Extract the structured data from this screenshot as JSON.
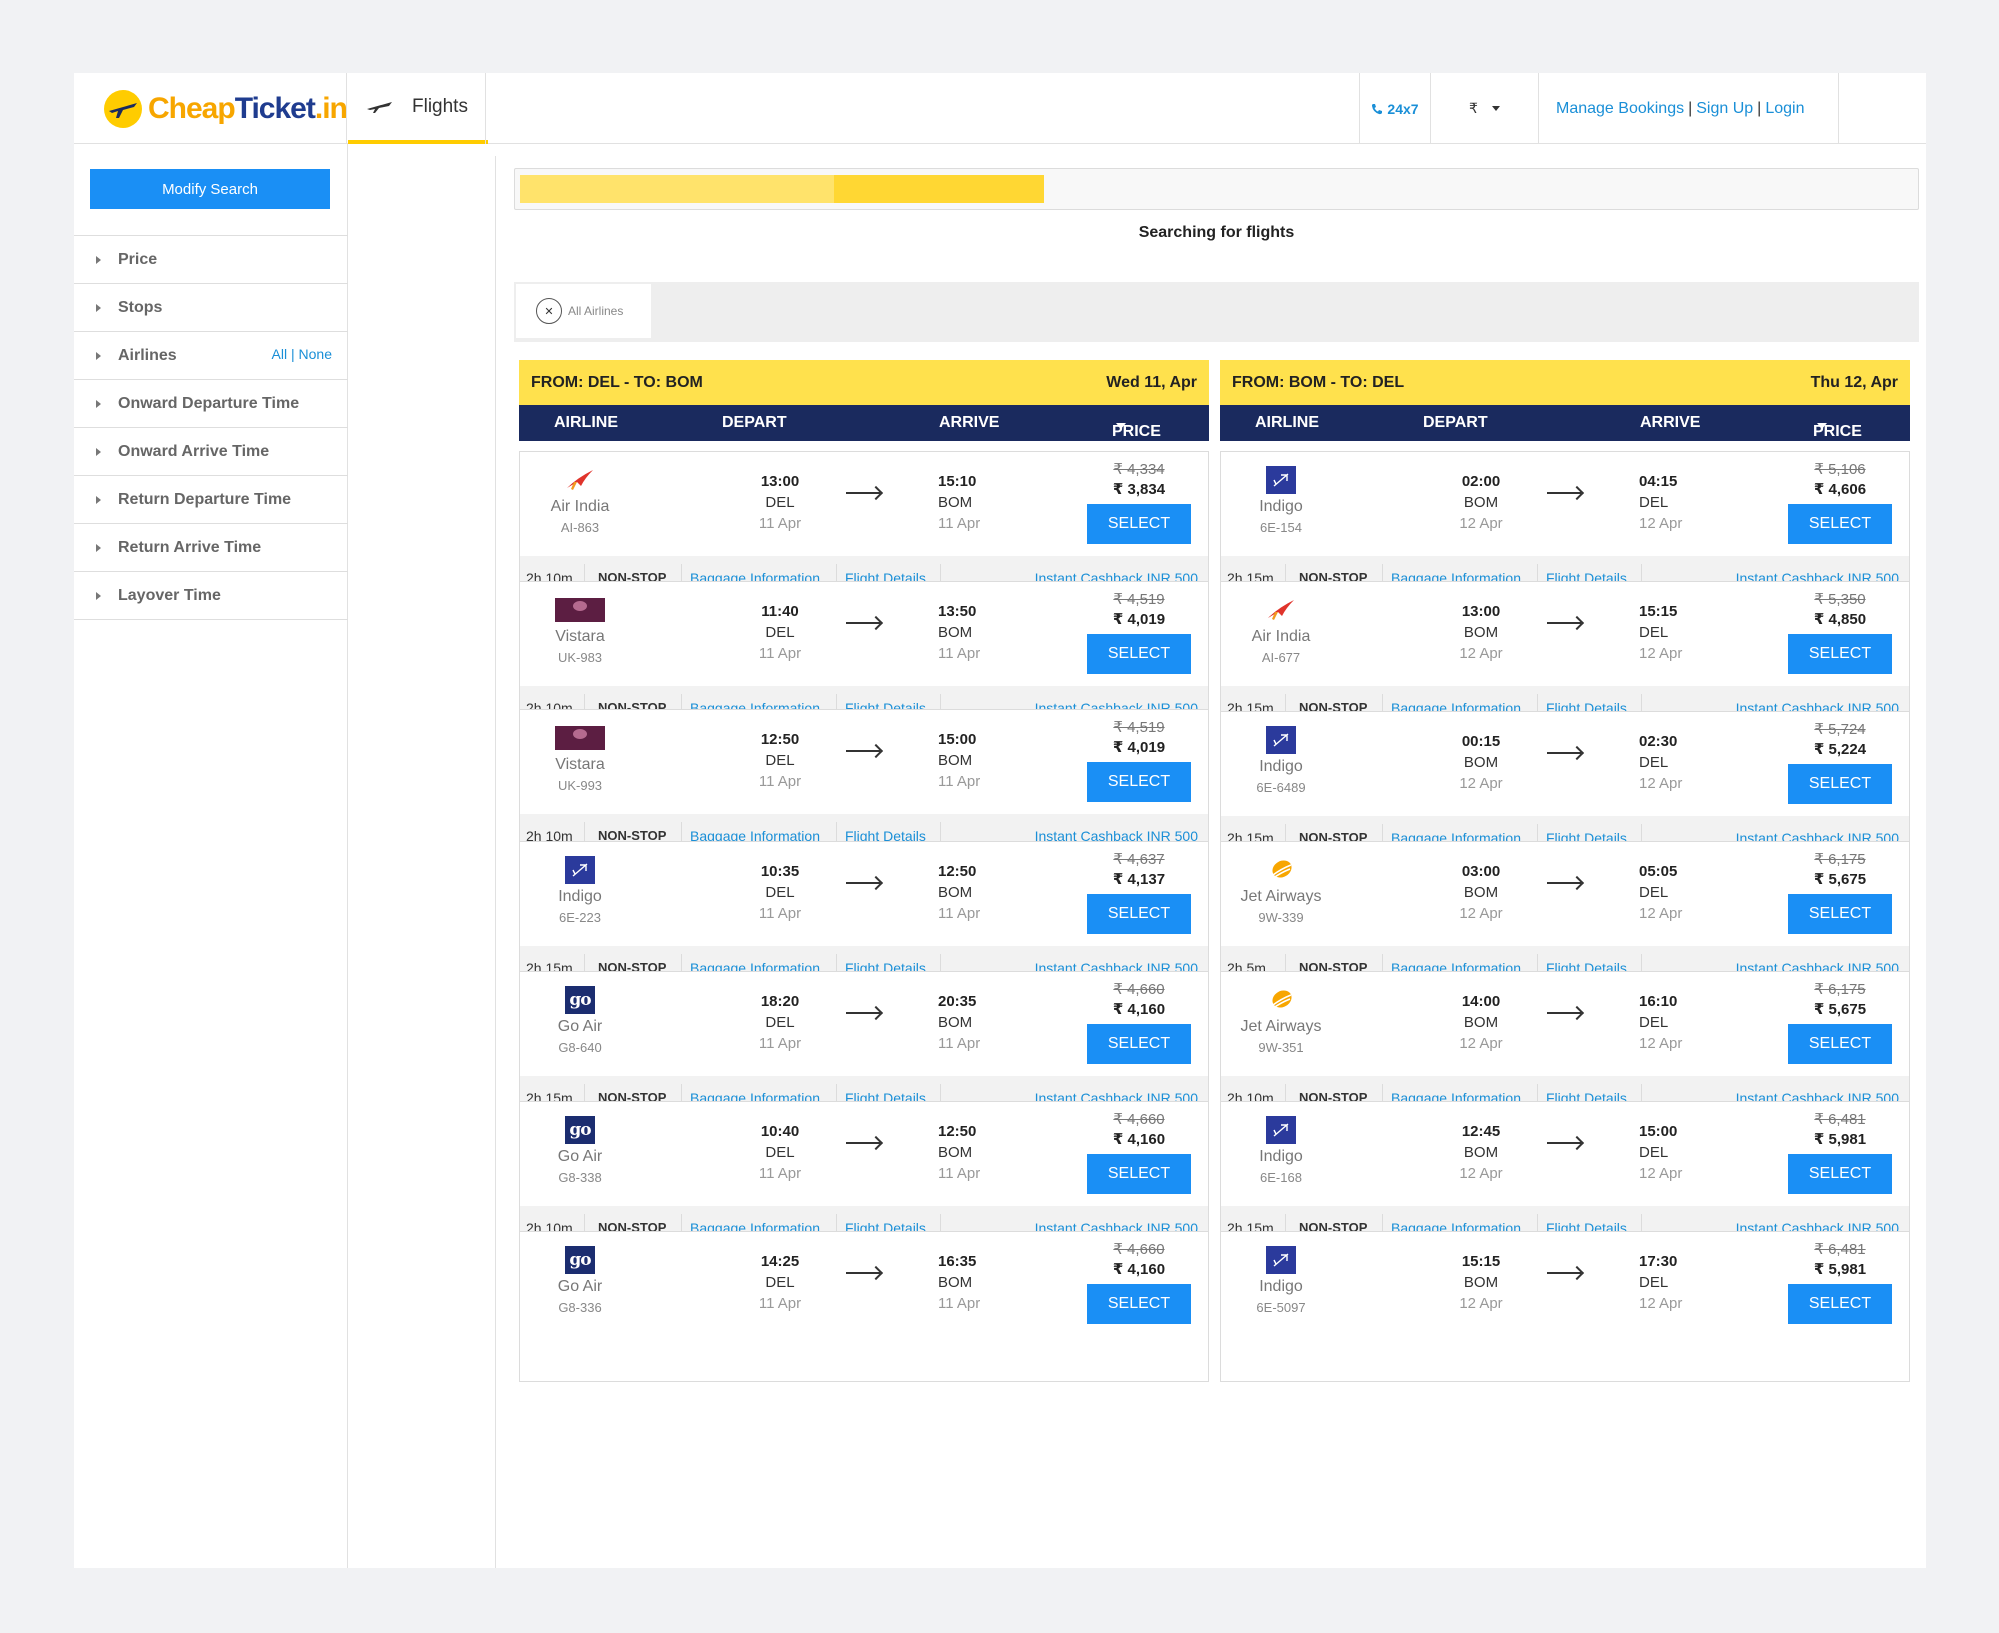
{
  "brand": {
    "logo_part1": "Cheap",
    "logo_part2": "Ticket",
    "logo_part3": ".in"
  },
  "nav": {
    "flights_tab": "Flights"
  },
  "header": {
    "support": "24x7",
    "currency": "₹",
    "manage_bookings": "Manage Bookings",
    "signup": "Sign Up",
    "login": "Login",
    "sep": "|"
  },
  "sidebar": {
    "modify_search": "Modify Search",
    "filters": [
      {
        "label": "Price"
      },
      {
        "label": "Stops"
      },
      {
        "label": "Airlines",
        "all": "All",
        "none": "None"
      },
      {
        "label": "Onward Departure Time"
      },
      {
        "label": "Onward Arrive Time"
      },
      {
        "label": "Return Departure Time"
      },
      {
        "label": "Return Arrive Time"
      },
      {
        "label": "Layover Time"
      }
    ]
  },
  "search": {
    "status": "Searching for flights",
    "progress": 0.46,
    "all_airlines": "All Airlines"
  },
  "columns": {
    "airline": "AIRLINE",
    "depart": "DEPART",
    "arrive": "ARRIVE",
    "price": "PRICE"
  },
  "onward": {
    "route": "FROM: DEL - TO: BOM",
    "date": "Wed 11, Apr",
    "flights": [
      {
        "logo": "airindia-icon",
        "airline": "Air India",
        "code": "AI-863",
        "dep_time": "13:00",
        "dep_city": "DEL",
        "dep_date": "11 Apr",
        "arr_time": "15:10",
        "arr_city": "BOM",
        "arr_date": "11 Apr",
        "old_price": "₹ 4,334",
        "price": "₹ 3,834",
        "duration": "2h 10m",
        "stops": "NON-STOP"
      },
      {
        "logo": "vistara-icon",
        "airline": "Vistara",
        "code": "UK-983",
        "dep_time": "11:40",
        "dep_city": "DEL",
        "dep_date": "11 Apr",
        "arr_time": "13:50",
        "arr_city": "BOM",
        "arr_date": "11 Apr",
        "old_price": "₹ 4,519",
        "price": "₹ 4,019",
        "duration": "2h 10m",
        "stops": "NON-STOP"
      },
      {
        "logo": "vistara-icon",
        "airline": "Vistara",
        "code": "UK-993",
        "dep_time": "12:50",
        "dep_city": "DEL",
        "dep_date": "11 Apr",
        "arr_time": "15:00",
        "arr_city": "BOM",
        "arr_date": "11 Apr",
        "old_price": "₹ 4,519",
        "price": "₹ 4,019",
        "duration": "2h 10m",
        "stops": "NON-STOP"
      },
      {
        "logo": "indigo-icon",
        "airline": "Indigo",
        "code": "6E-223",
        "dep_time": "10:35",
        "dep_city": "DEL",
        "dep_date": "11 Apr",
        "arr_time": "12:50",
        "arr_city": "BOM",
        "arr_date": "11 Apr",
        "old_price": "₹ 4,637",
        "price": "₹ 4,137",
        "duration": "2h 15m",
        "stops": "NON-STOP"
      },
      {
        "logo": "goair-icon",
        "airline": "Go Air",
        "code": "G8-640",
        "dep_time": "18:20",
        "dep_city": "DEL",
        "dep_date": "11 Apr",
        "arr_time": "20:35",
        "arr_city": "BOM",
        "arr_date": "11 Apr",
        "old_price": "₹ 4,660",
        "price": "₹ 4,160",
        "duration": "2h 15m",
        "stops": "NON-STOP"
      },
      {
        "logo": "goair-icon",
        "airline": "Go Air",
        "code": "G8-338",
        "dep_time": "10:40",
        "dep_city": "DEL",
        "dep_date": "11 Apr",
        "arr_time": "12:50",
        "arr_city": "BOM",
        "arr_date": "11 Apr",
        "old_price": "₹ 4,660",
        "price": "₹ 4,160",
        "duration": "2h 10m",
        "stops": "NON-STOP"
      },
      {
        "logo": "goair-icon",
        "airline": "Go Air",
        "code": "G8-336",
        "dep_time": "14:25",
        "dep_city": "DEL",
        "dep_date": "11 Apr",
        "arr_time": "16:35",
        "arr_city": "BOM",
        "arr_date": "11 Apr",
        "old_price": "₹ 4,660",
        "price": "₹ 4,160",
        "duration": "",
        "stops": ""
      }
    ]
  },
  "return": {
    "route": "FROM: BOM - TO: DEL",
    "date": "Thu 12, Apr",
    "flights": [
      {
        "logo": "indigo-icon",
        "airline": "Indigo",
        "code": "6E-154",
        "dep_time": "02:00",
        "dep_city": "BOM",
        "dep_date": "12 Apr",
        "arr_time": "04:15",
        "arr_city": "DEL",
        "arr_date": "12 Apr",
        "old_price": "₹ 5,106",
        "price": "₹ 4,606",
        "duration": "2h 15m",
        "stops": "NON-STOP"
      },
      {
        "logo": "airindia-icon",
        "airline": "Air India",
        "code": "AI-677",
        "dep_time": "13:00",
        "dep_city": "BOM",
        "dep_date": "12 Apr",
        "arr_time": "15:15",
        "arr_city": "DEL",
        "arr_date": "12 Apr",
        "old_price": "₹ 5,350",
        "price": "₹ 4,850",
        "duration": "2h 15m",
        "stops": "NON-STOP"
      },
      {
        "logo": "indigo-icon",
        "airline": "Indigo",
        "code": "6E-6489",
        "dep_time": "00:15",
        "dep_city": "BOM",
        "dep_date": "12 Apr",
        "arr_time": "02:30",
        "arr_city": "DEL",
        "arr_date": "12 Apr",
        "old_price": "₹ 5,724",
        "price": "₹ 5,224",
        "duration": "2h 15m",
        "stops": "NON-STOP"
      },
      {
        "logo": "jetairways-icon",
        "airline": "Jet Airways",
        "code": "9W-339",
        "dep_time": "03:00",
        "dep_city": "BOM",
        "dep_date": "12 Apr",
        "arr_time": "05:05",
        "arr_city": "DEL",
        "arr_date": "12 Apr",
        "old_price": "₹ 6,175",
        "price": "₹ 5,675",
        "duration": "2h 5m",
        "stops": "NON-STOP"
      },
      {
        "logo": "jetairways-icon",
        "airline": "Jet Airways",
        "code": "9W-351",
        "dep_time": "14:00",
        "dep_city": "BOM",
        "dep_date": "12 Apr",
        "arr_time": "16:10",
        "arr_city": "DEL",
        "arr_date": "12 Apr",
        "old_price": "₹ 6,175",
        "price": "₹ 5,675",
        "duration": "2h 10m",
        "stops": "NON-STOP"
      },
      {
        "logo": "indigo-icon",
        "airline": "Indigo",
        "code": "6E-168",
        "dep_time": "12:45",
        "dep_city": "BOM",
        "dep_date": "12 Apr",
        "arr_time": "15:00",
        "arr_city": "DEL",
        "arr_date": "12 Apr",
        "old_price": "₹ 6,481",
        "price": "₹ 5,981",
        "duration": "2h 15m",
        "stops": "NON-STOP"
      },
      {
        "logo": "indigo-icon",
        "airline": "Indigo",
        "code": "6E-5097",
        "dep_time": "15:15",
        "dep_city": "BOM",
        "dep_date": "12 Apr",
        "arr_time": "17:30",
        "arr_city": "DEL",
        "arr_date": "12 Apr",
        "old_price": "₹ 6,481",
        "price": "₹ 5,981",
        "duration": "",
        "stops": ""
      }
    ]
  },
  "card_labels": {
    "select": "SELECT",
    "baggage": "Baggage Information",
    "details": "Flight Details",
    "cashback": "Instant Cashback INR 500"
  },
  "colors": {
    "brand_yellow": "#ffcc00",
    "primary_blue": "#1a8ff5",
    "header_navy": "#1a2a5e",
    "link_blue": "#1a8fd7"
  }
}
